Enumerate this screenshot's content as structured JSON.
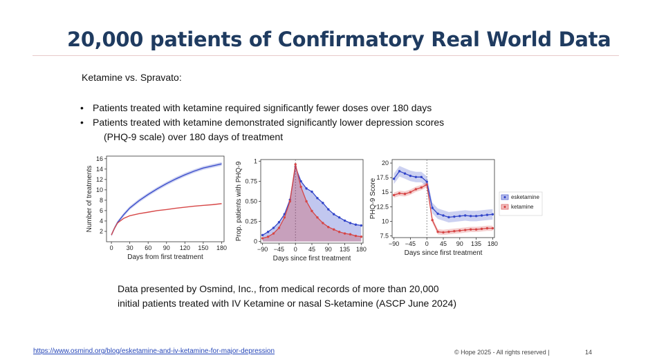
{
  "slide": {
    "title": "20,000 patients of Confirmatory Real World Data",
    "subtitle": "Ketamine vs. Spravato:",
    "bullets": [
      "Patients treated with ketamine required significantly fewer doses over 180 days",
      "Patients treated with ketamine demonstrated significantly lower depression scores",
      "(PHQ-9 scale) over 180 days of treatment"
    ],
    "bullet_symbol": "•",
    "caption_line1": "Data presented by Osmind, Inc., from medical records of more than 20,000",
    "caption_line2": "initial patients treated with IV Ketamine or nasal S-ketamine (ASCP June 2024)",
    "link": "https://www.osmind.org/blog/esketamine-and-iv-ketamine-for-major-depression",
    "copyright": "© Hope 2025 - All rights reserved |",
    "page_number": "14"
  },
  "colors": {
    "title": "#1f3b60",
    "esketamine": "#3346c9",
    "ketamine": "#d64545",
    "link": "#2546b8"
  },
  "chart_data": [
    {
      "type": "line",
      "title": "",
      "xlabel": "Days from first treatment",
      "ylabel": "Number of treatments",
      "xlim": [
        -8,
        184
      ],
      "ylim": [
        0,
        16.5
      ],
      "xticks": [
        "0",
        "30",
        "60",
        "90",
        "120",
        "150",
        "180"
      ],
      "yticks": [
        "2",
        "4",
        "6",
        "8",
        "10",
        "12",
        "14",
        "16"
      ],
      "x": [
        0,
        5,
        10,
        20,
        30,
        45,
        60,
        75,
        90,
        105,
        120,
        135,
        150,
        165,
        180
      ],
      "series": [
        {
          "name": "esketamine",
          "values": [
            1.3,
            2.6,
            3.7,
            5.2,
            6.5,
            7.9,
            9.1,
            10.2,
            11.2,
            12.1,
            12.9,
            13.6,
            14.2,
            14.6,
            15.0
          ]
        },
        {
          "name": "ketamine",
          "values": [
            1.3,
            2.6,
            3.6,
            4.5,
            5.0,
            5.4,
            5.7,
            6.0,
            6.2,
            6.45,
            6.65,
            6.85,
            7.0,
            7.15,
            7.35
          ]
        }
      ]
    },
    {
      "type": "area",
      "title": "",
      "xlabel": "Days since first treatment",
      "ylabel": "Prop. patients with PHQ-9",
      "xlim": [
        -95,
        185
      ],
      "ylim": [
        -0.02,
        1.02
      ],
      "xticks": [
        "−90",
        "−45",
        "0",
        "45",
        "90",
        "135",
        "180"
      ],
      "yticks": [
        "0",
        "0.25",
        "0.50",
        "0.75",
        "1"
      ],
      "x": [
        -90,
        -75,
        -60,
        -45,
        -30,
        -15,
        0,
        15,
        30,
        45,
        60,
        75,
        90,
        105,
        120,
        135,
        150,
        165,
        180
      ],
      "series": [
        {
          "name": "esketamine",
          "values": [
            0.08,
            0.12,
            0.17,
            0.24,
            0.34,
            0.52,
            0.93,
            0.75,
            0.66,
            0.62,
            0.54,
            0.48,
            0.4,
            0.34,
            0.3,
            0.26,
            0.23,
            0.21,
            0.2
          ]
        },
        {
          "name": "ketamine",
          "values": [
            0.04,
            0.06,
            0.1,
            0.17,
            0.3,
            0.5,
            0.96,
            0.68,
            0.5,
            0.38,
            0.3,
            0.23,
            0.18,
            0.15,
            0.12,
            0.1,
            0.09,
            0.07,
            0.06
          ]
        }
      ]
    },
    {
      "type": "line",
      "title": "",
      "xlabel": "Days since first treatment",
      "ylabel": "PHQ-9 Score",
      "xlim": [
        -95,
        185
      ],
      "ylim": [
        7.2,
        20.6
      ],
      "xticks": [
        "−90",
        "−45",
        "0",
        "45",
        "90",
        "135",
        "180"
      ],
      "yticks": [
        "7.5",
        "10",
        "12.5",
        "15",
        "17.5",
        "20"
      ],
      "legend": "right",
      "x": [
        -90,
        -75,
        -60,
        -45,
        -30,
        -15,
        0,
        15,
        30,
        45,
        60,
        75,
        90,
        105,
        120,
        135,
        150,
        165,
        180
      ],
      "series": [
        {
          "name": "esketamine",
          "values": [
            17.3,
            18.6,
            18.2,
            17.8,
            17.6,
            17.6,
            16.8,
            12.3,
            11.3,
            11.0,
            10.7,
            10.8,
            10.9,
            11.0,
            10.9,
            10.9,
            11.0,
            11.1,
            11.2
          ]
        },
        {
          "name": "ketamine",
          "values": [
            14.5,
            14.8,
            14.7,
            15.0,
            15.5,
            15.8,
            16.3,
            10.2,
            8.2,
            8.1,
            8.2,
            8.3,
            8.4,
            8.5,
            8.6,
            8.6,
            8.7,
            8.8,
            8.8
          ]
        }
      ]
    }
  ]
}
